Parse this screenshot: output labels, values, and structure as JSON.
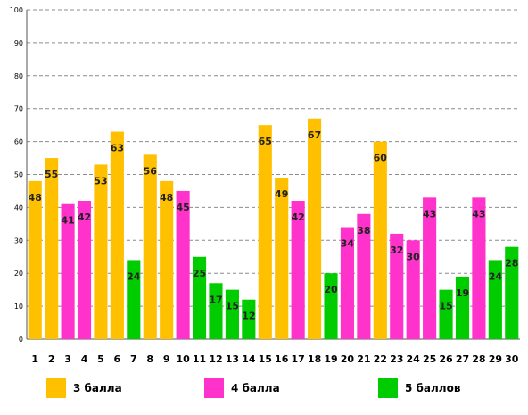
{
  "chart_data": {
    "type": "bar",
    "categories": [
      "1",
      "2",
      "3",
      "4",
      "5",
      "6",
      "7",
      "8",
      "9",
      "10",
      "11",
      "12",
      "13",
      "14",
      "15",
      "16",
      "17",
      "18",
      "19",
      "20",
      "21",
      "22",
      "23",
      "24",
      "25",
      "26",
      "27",
      "28",
      "29",
      "30"
    ],
    "values": [
      48,
      55,
      41,
      42,
      53,
      63,
      24,
      56,
      48,
      45,
      25,
      17,
      15,
      12,
      65,
      49,
      42,
      67,
      20,
      34,
      38,
      60,
      32,
      30,
      43,
      15,
      19,
      43,
      24,
      28
    ],
    "groups": [
      "3",
      "3",
      "4",
      "4",
      "3",
      "3",
      "5",
      "3",
      "3",
      "4",
      "5",
      "5",
      "5",
      "5",
      "3",
      "3",
      "4",
      "3",
      "5",
      "4",
      "4",
      "3",
      "4",
      "4",
      "4",
      "5",
      "5",
      "4",
      "5",
      "5"
    ],
    "ylim": [
      0,
      100
    ],
    "yticks": [
      0,
      10,
      20,
      30,
      40,
      50,
      60,
      70,
      80,
      90,
      100
    ],
    "grid": true,
    "legend_position": "bottom",
    "legend": [
      {
        "key": "3",
        "label": "3 балла",
        "color": "#FFC000"
      },
      {
        "key": "4",
        "label": "4 балла",
        "color": "#FF33CC"
      },
      {
        "key": "5",
        "label": "5 баллов",
        "color": "#00CC00"
      }
    ]
  }
}
